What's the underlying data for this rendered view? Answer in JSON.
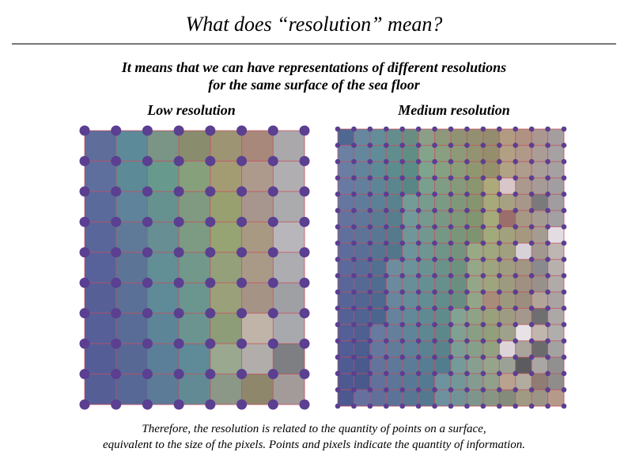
{
  "slide": {
    "title": "What does “resolution” mean?",
    "subtitle_line1": "It means that we can have representations of different resolutions",
    "subtitle_line2": "for the same surface of the sea floor",
    "caption_line1": "Therefore, the resolution is related to the quantity of points on a surface,",
    "caption_line2": "equivalent to the size of the pixels. Points and pixels indicate the quantity of information."
  },
  "panels": {
    "low": {
      "label": "Low resolution",
      "cols": 7,
      "rows": 9,
      "colors": [
        [
          "#5e6d9a",
          "#5d8a99",
          "#7a9485",
          "#8a8c6e",
          "#9d9474",
          "#a8887a",
          "#aaa8ab"
        ],
        [
          "#5e6f9e",
          "#5c8a97",
          "#679a8c",
          "#87a07c",
          "#a39b72",
          "#ad9a8d",
          "#b0aeb1"
        ],
        [
          "#5a6a9b",
          "#5f839a",
          "#65928f",
          "#7f9a80",
          "#99a070",
          "#a7968d",
          "#abaaad"
        ],
        [
          "#596699",
          "#5f7a98",
          "#668e93",
          "#7c9b82",
          "#96a373",
          "#a89a82",
          "#b8b6bb"
        ],
        [
          "#58629a",
          "#5c7597",
          "#628e96",
          "#71988b",
          "#94a07a",
          "#a99a88",
          "#adacb0"
        ],
        [
          "#566097",
          "#5a7097",
          "#5f8a97",
          "#6b9690",
          "#9aa17a",
          "#a59485",
          "#9fa0a4"
        ],
        [
          "#565f98",
          "#586c97",
          "#5d8598",
          "#6b9490",
          "#8c9d78",
          "#c0b4a8",
          "#a8a9ad"
        ],
        [
          "#555d97",
          "#586895",
          "#5b7e99",
          "#5f8a97",
          "#99a88f",
          "#b0adaa",
          "#7d7f82"
        ],
        [
          "#565e96",
          "#586896",
          "#5c7b97",
          "#628a95",
          "#8b9787",
          "#8e876c",
          "#a39b99"
        ]
      ]
    },
    "medium": {
      "label": "Medium resolution",
      "cols": 14,
      "rows": 17
    }
  },
  "colors": {
    "dot": "#5b3f91",
    "grid_line": "#cc4c5c",
    "background": "#ffffff"
  }
}
